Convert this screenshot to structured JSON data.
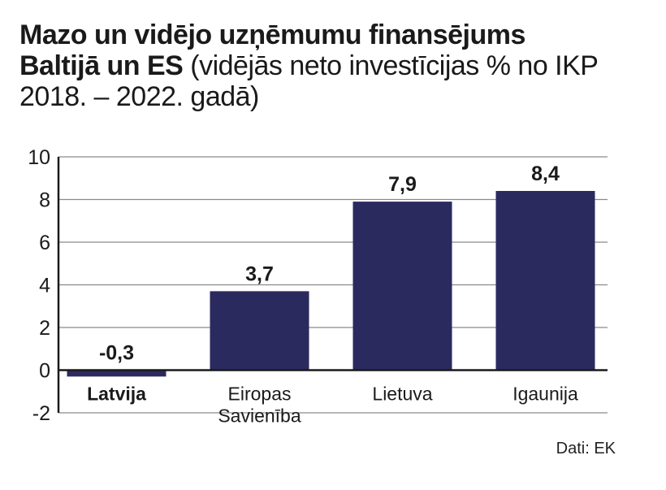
{
  "title": {
    "bold_line1": "Mazo un vidējo uzņēmumu finansējums",
    "bold_line2": "Baltijā un ES",
    "light_part": " (vidējās neto investīcijas % no IKP 2018. – 2022. gadā)"
  },
  "source": "Dati: EK",
  "colors": {
    "bar": "#2b2a5f",
    "grid": "#8a8a8a",
    "axis": "#1a1a1a",
    "text": "#1a1a1a"
  },
  "chart_data": {
    "type": "bar",
    "title": "Mazo un vidējo uzņēmumu finansējums Baltijā un ES (vidējās neto investīcijas % no IKP 2018. – 2022. gadā)",
    "categories": [
      "Latvija",
      "Eiropas Savienība",
      "Lietuva",
      "Igaunija"
    ],
    "category_lines": [
      [
        "Latvija"
      ],
      [
        "Eiropas",
        "Savienība"
      ],
      [
        "Lietuva"
      ],
      [
        "Igaunija"
      ]
    ],
    "highlight_category": "Latvija",
    "values": [
      -0.3,
      3.7,
      7.9,
      8.4
    ],
    "data_labels": [
      "-0,3",
      "3,7",
      "7,9",
      "8,4"
    ],
    "xlabel": "",
    "ylabel": "",
    "ylim": [
      -2,
      10
    ],
    "yticks": [
      10,
      8,
      6,
      4,
      2,
      0,
      -2
    ],
    "ytick_labels": [
      "10",
      "8",
      "6",
      "4",
      "2",
      "0",
      "-2"
    ],
    "grid": true,
    "legend": "none"
  }
}
